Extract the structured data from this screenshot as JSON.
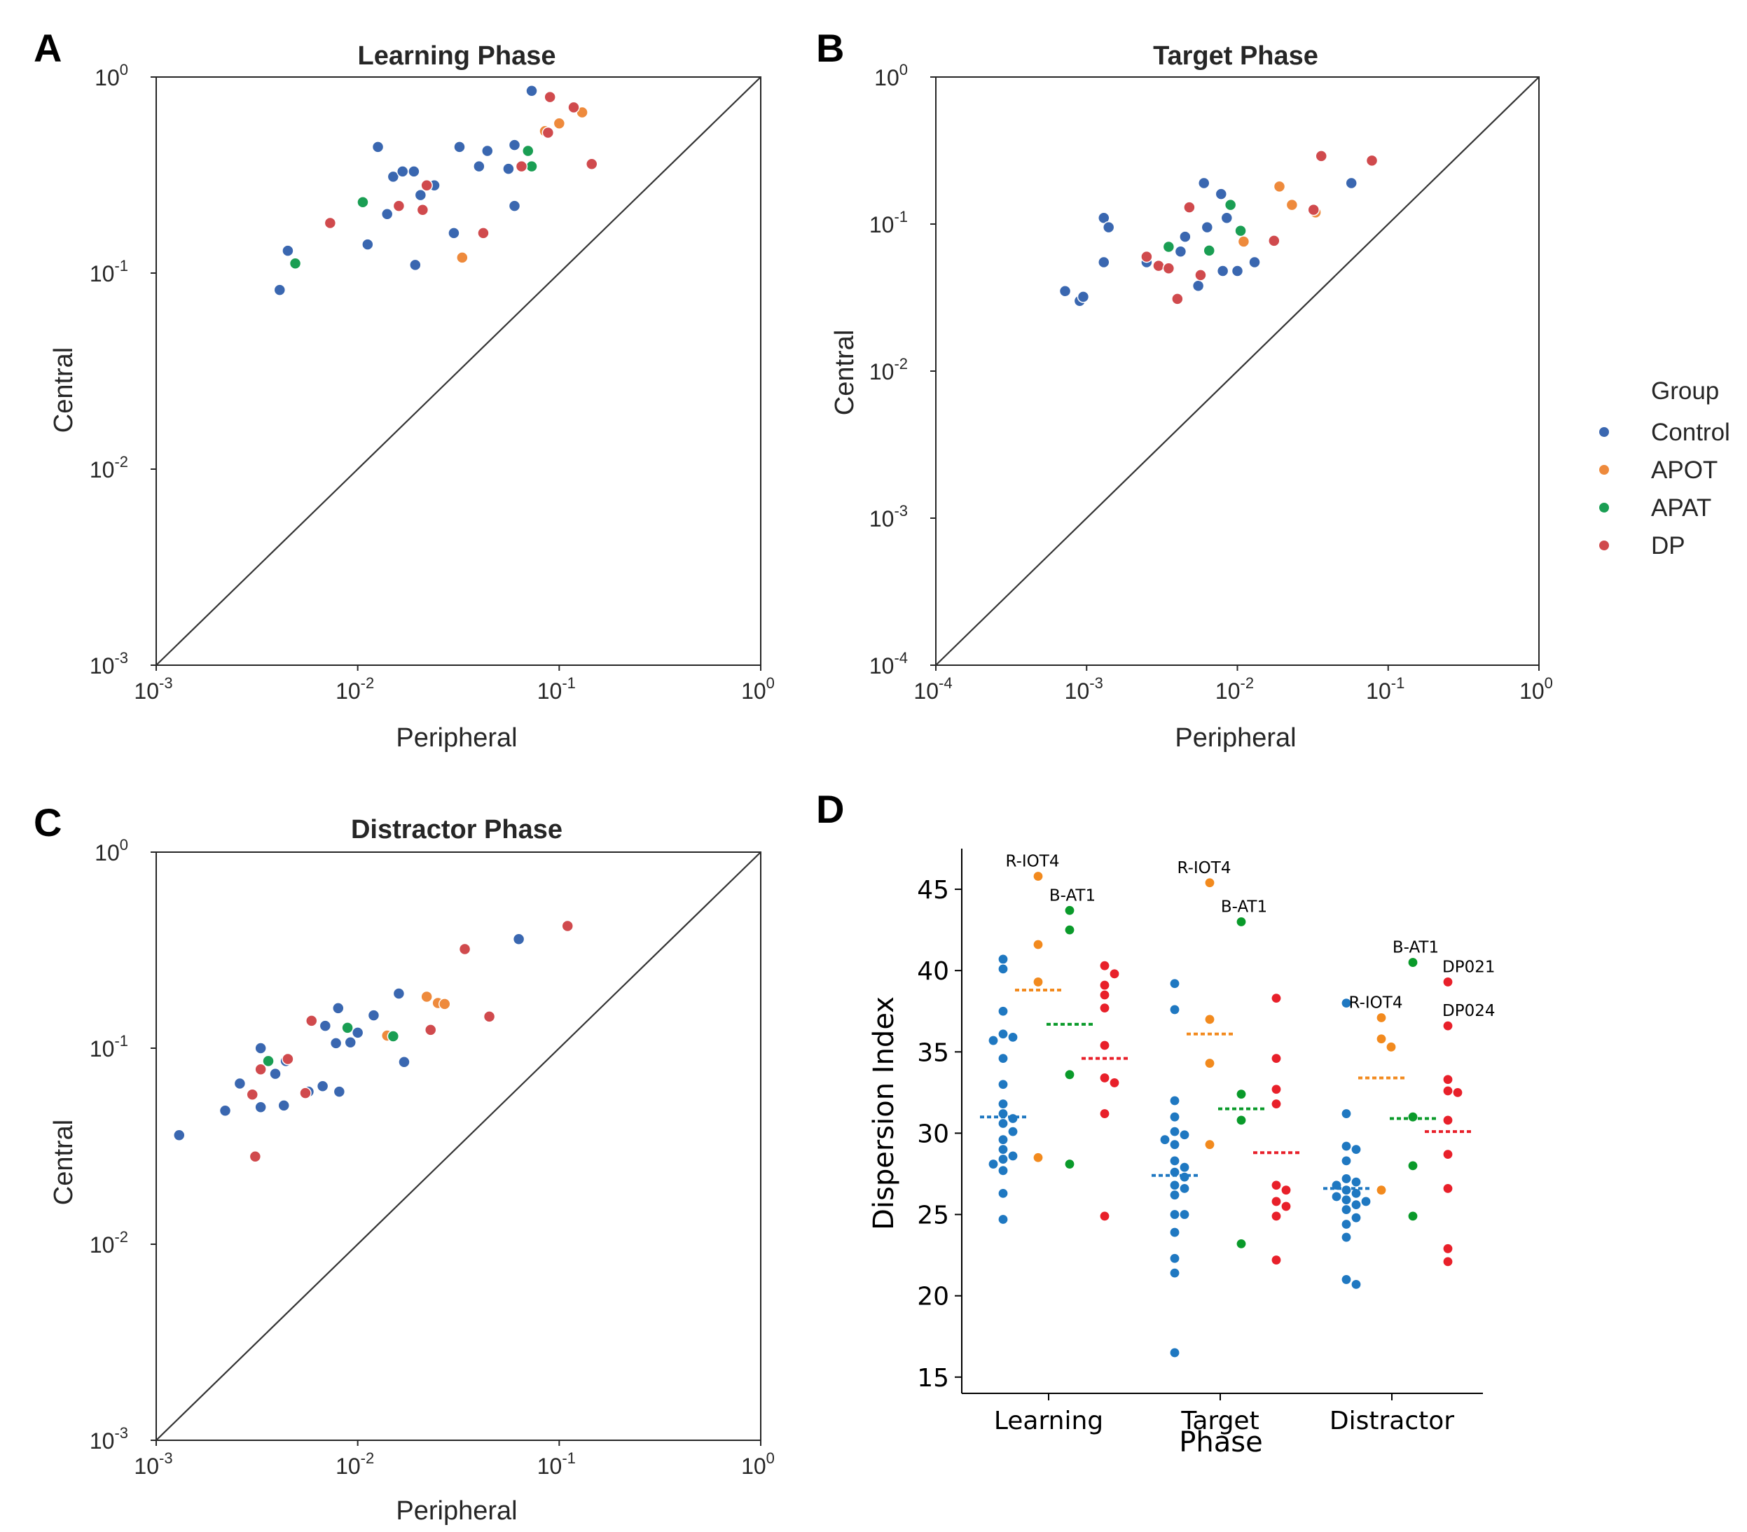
{
  "panel_letters": [
    "A",
    "B",
    "C",
    "D"
  ],
  "legend": {
    "title": "Group",
    "entries": [
      {
        "label": "Control",
        "color": "#3a67b0"
      },
      {
        "label": "APOT",
        "color": "#ee8a3c"
      },
      {
        "label": "APAT",
        "color": "#1a9e53"
      },
      {
        "label": "DP",
        "color": "#d04a4d"
      }
    ]
  },
  "chart_data": [
    {
      "type": "scatter",
      "scale": "log",
      "title": "Learning Phase",
      "xlabel": "Peripheral",
      "ylabel": "Central",
      "xlim_exp": [
        -3,
        0
      ],
      "ylim_exp": [
        -3,
        0
      ],
      "x_tick_exponents": [
        "-3",
        "-2",
        "-1",
        "0"
      ],
      "y_tick_exponents": [
        "-3",
        "-2",
        "-1",
        "0"
      ],
      "diagonal": true,
      "series": [
        {
          "name": "Control",
          "points": [
            [
              0.0041,
              0.082
            ],
            [
              0.0045,
              0.13
            ],
            [
              0.0112,
              0.14
            ],
            [
              0.0126,
              0.44
            ],
            [
              0.014,
              0.2
            ],
            [
              0.015,
              0.31
            ],
            [
              0.0167,
              0.33
            ],
            [
              0.019,
              0.33
            ],
            [
              0.0193,
              0.11
            ],
            [
              0.0205,
              0.25
            ],
            [
              0.024,
              0.28
            ],
            [
              0.03,
              0.16
            ],
            [
              0.032,
              0.44
            ],
            [
              0.04,
              0.35
            ],
            [
              0.044,
              0.42
            ],
            [
              0.056,
              0.34
            ],
            [
              0.06,
              0.45
            ],
            [
              0.06,
              0.22
            ],
            [
              0.073,
              0.85
            ]
          ]
        },
        {
          "name": "APOT",
          "points": [
            [
              0.033,
              0.12
            ],
            [
              0.085,
              0.53
            ],
            [
              0.1,
              0.58
            ],
            [
              0.13,
              0.66
            ]
          ]
        },
        {
          "name": "APAT",
          "points": [
            [
              0.0049,
              0.112
            ],
            [
              0.0106,
              0.23
            ],
            [
              0.07,
              0.42
            ],
            [
              0.073,
              0.35
            ]
          ]
        },
        {
          "name": "DP",
          "points": [
            [
              0.0073,
              0.18
            ],
            [
              0.016,
              0.22
            ],
            [
              0.021,
              0.21
            ],
            [
              0.022,
              0.28
            ],
            [
              0.042,
              0.16
            ],
            [
              0.065,
              0.35
            ],
            [
              0.088,
              0.52
            ],
            [
              0.09,
              0.79
            ],
            [
              0.118,
              0.7
            ],
            [
              0.145,
              0.36
            ]
          ]
        }
      ]
    },
    {
      "type": "scatter",
      "scale": "log",
      "title": "Target Phase",
      "xlabel": "Peripheral",
      "ylabel": "Central",
      "xlim_exp": [
        -4,
        0
      ],
      "ylim_exp": [
        -4,
        0
      ],
      "x_tick_exponents": [
        "-4",
        "-3",
        "-2",
        "-1",
        "0"
      ],
      "y_tick_exponents": [
        "-4",
        "-3",
        "-2",
        "-1",
        "0"
      ],
      "diagonal": true,
      "series": [
        {
          "name": "Control",
          "points": [
            [
              0.00072,
              0.035
            ],
            [
              0.0009,
              0.03
            ],
            [
              0.00095,
              0.032
            ],
            [
              0.0013,
              0.11
            ],
            [
              0.0013,
              0.055
            ],
            [
              0.0014,
              0.095
            ],
            [
              0.0025,
              0.055
            ],
            [
              0.0035,
              0.07
            ],
            [
              0.0042,
              0.065
            ],
            [
              0.0045,
              0.082
            ],
            [
              0.0055,
              0.038
            ],
            [
              0.006,
              0.19
            ],
            [
              0.0063,
              0.095
            ],
            [
              0.0078,
              0.16
            ],
            [
              0.008,
              0.048
            ],
            [
              0.0085,
              0.11
            ],
            [
              0.01,
              0.048
            ],
            [
              0.013,
              0.055
            ],
            [
              0.057,
              0.19
            ]
          ]
        },
        {
          "name": "APOT",
          "points": [
            [
              0.011,
              0.076
            ],
            [
              0.019,
              0.18
            ],
            [
              0.023,
              0.135
            ],
            [
              0.033,
              0.12
            ]
          ]
        },
        {
          "name": "APAT",
          "points": [
            [
              0.0035,
              0.07
            ],
            [
              0.0065,
              0.066
            ],
            [
              0.009,
              0.135
            ],
            [
              0.0105,
              0.09
            ]
          ]
        },
        {
          "name": "DP",
          "points": [
            [
              0.0025,
              0.06
            ],
            [
              0.003,
              0.052
            ],
            [
              0.0035,
              0.05
            ],
            [
              0.004,
              0.031
            ],
            [
              0.0048,
              0.13
            ],
            [
              0.0057,
              0.045
            ],
            [
              0.0175,
              0.077
            ],
            [
              0.032,
              0.125
            ],
            [
              0.036,
              0.29
            ],
            [
              0.078,
              0.27
            ]
          ]
        }
      ]
    },
    {
      "type": "scatter",
      "scale": "log",
      "title": "Distractor Phase",
      "xlabel": "Peripheral",
      "ylabel": "Central",
      "xlim_exp": [
        -3,
        0
      ],
      "ylim_exp": [
        -3,
        0
      ],
      "x_tick_exponents": [
        "-3",
        "-2",
        "-1",
        "0"
      ],
      "y_tick_exponents": [
        "-3",
        "-2",
        "-1",
        "0"
      ],
      "diagonal": true,
      "series": [
        {
          "name": "Control",
          "points": [
            [
              0.0013,
              0.036
            ],
            [
              0.0022,
              0.048
            ],
            [
              0.0026,
              0.066
            ],
            [
              0.0033,
              0.1
            ],
            [
              0.0033,
              0.05
            ],
            [
              0.0039,
              0.074
            ],
            [
              0.0043,
              0.051
            ],
            [
              0.0044,
              0.086
            ],
            [
              0.0057,
              0.06
            ],
            [
              0.0067,
              0.064
            ],
            [
              0.0069,
              0.13
            ],
            [
              0.0078,
              0.106
            ],
            [
              0.008,
              0.16
            ],
            [
              0.0081,
              0.06
            ],
            [
              0.0092,
              0.107
            ],
            [
              0.01,
              0.12
            ],
            [
              0.012,
              0.147
            ],
            [
              0.016,
              0.19
            ],
            [
              0.017,
              0.085
            ],
            [
              0.063,
              0.36
            ]
          ]
        },
        {
          "name": "APOT",
          "points": [
            [
              0.014,
              0.116
            ],
            [
              0.022,
              0.183
            ],
            [
              0.025,
              0.17
            ],
            [
              0.027,
              0.168
            ]
          ]
        },
        {
          "name": "APAT",
          "points": [
            [
              0.0036,
              0.086
            ],
            [
              0.0089,
              0.127
            ],
            [
              0.015,
              0.115
            ]
          ]
        },
        {
          "name": "DP",
          "points": [
            [
              0.003,
              0.058
            ],
            [
              0.0031,
              0.028
            ],
            [
              0.0033,
              0.078
            ],
            [
              0.0045,
              0.088
            ],
            [
              0.0055,
              0.059
            ],
            [
              0.0059,
              0.138
            ],
            [
              0.023,
              0.124
            ],
            [
              0.034,
              0.32
            ],
            [
              0.045,
              0.145
            ],
            [
              0.11,
              0.42
            ]
          ]
        }
      ]
    },
    {
      "type": "swarm",
      "xlabel": "Phase",
      "ylabel": "Dispersion Index",
      "categories": [
        "Learning",
        "Target",
        "Distractor"
      ],
      "ylim": [
        14,
        47.5
      ],
      "y_ticks": [
        "15",
        "20",
        "25",
        "30",
        "35",
        "40",
        "45"
      ],
      "series": [
        {
          "name": "Control",
          "means": [
            31.0,
            27.4,
            26.6
          ],
          "values": [
            [
              40.7,
              40.1,
              37.5,
              36.1,
              35.9,
              35.7,
              34.6,
              33.0,
              31.8,
              31.2,
              30.9,
              30.6,
              30.1,
              29.6,
              29.0,
              28.6,
              28.4,
              28.1,
              27.7,
              26.3,
              24.7
            ],
            [
              39.2,
              37.6,
              32.0,
              31.0,
              30.1,
              29.9,
              29.6,
              29.3,
              28.3,
              27.9,
              27.6,
              27.3,
              26.8,
              26.6,
              26.2,
              25.0,
              25.0,
              23.9,
              22.3,
              21.4,
              16.5
            ],
            [
              38.0,
              31.2,
              29.2,
              29.0,
              28.3,
              27.2,
              27.0,
              26.8,
              26.5,
              26.3,
              26.1,
              25.9,
              25.8,
              25.6,
              25.3,
              24.8,
              24.4,
              23.6,
              21.0,
              20.7
            ]
          ]
        },
        {
          "name": "APOT",
          "means": [
            38.8,
            36.1,
            33.4
          ],
          "values": [
            [
              45.8,
              41.6,
              39.3,
              28.5
            ],
            [
              45.4,
              37.0,
              34.3,
              29.3
            ],
            [
              37.1,
              35.8,
              35.3,
              26.5
            ]
          ]
        },
        {
          "name": "APAT",
          "means": [
            36.7,
            31.5,
            30.9
          ],
          "values": [
            [
              43.7,
              42.5,
              33.6,
              28.1
            ],
            [
              43.0,
              32.4,
              30.8,
              23.2
            ],
            [
              40.5,
              31.0,
              28.0,
              24.9
            ]
          ]
        },
        {
          "name": "DP",
          "means": [
            34.6,
            28.8,
            30.1
          ],
          "values": [
            [
              40.3,
              39.8,
              39.1,
              38.5,
              37.7,
              35.4,
              33.4,
              33.1,
              31.2,
              24.9
            ],
            [
              38.3,
              34.6,
              32.7,
              31.8,
              26.8,
              26.5,
              25.8,
              25.5,
              24.9,
              22.2
            ],
            [
              39.3,
              36.6,
              33.3,
              32.6,
              32.5,
              30.8,
              28.7,
              26.6,
              22.9,
              22.1
            ]
          ]
        }
      ],
      "annotations": [
        {
          "text": "R-IOT4",
          "series": "APOT",
          "category": "Learning",
          "value": 45.8
        },
        {
          "text": "B-AT1",
          "series": "APAT",
          "category": "Learning",
          "value": 43.7
        },
        {
          "text": "R-IOT4",
          "series": "APOT",
          "category": "Target",
          "value": 45.4
        },
        {
          "text": "B-AT1",
          "series": "APAT",
          "category": "Target",
          "value": 43.0
        },
        {
          "text": "B-AT1",
          "series": "APAT",
          "category": "Distractor",
          "value": 40.5
        },
        {
          "text": "DP021",
          "series": "DP",
          "category": "Distractor",
          "value": 39.3
        },
        {
          "text": "R-IOT4",
          "series": "APOT",
          "category": "Distractor",
          "value": 37.1
        },
        {
          "text": "DP024",
          "series": "DP",
          "category": "Distractor",
          "value": 36.6
        }
      ]
    }
  ]
}
